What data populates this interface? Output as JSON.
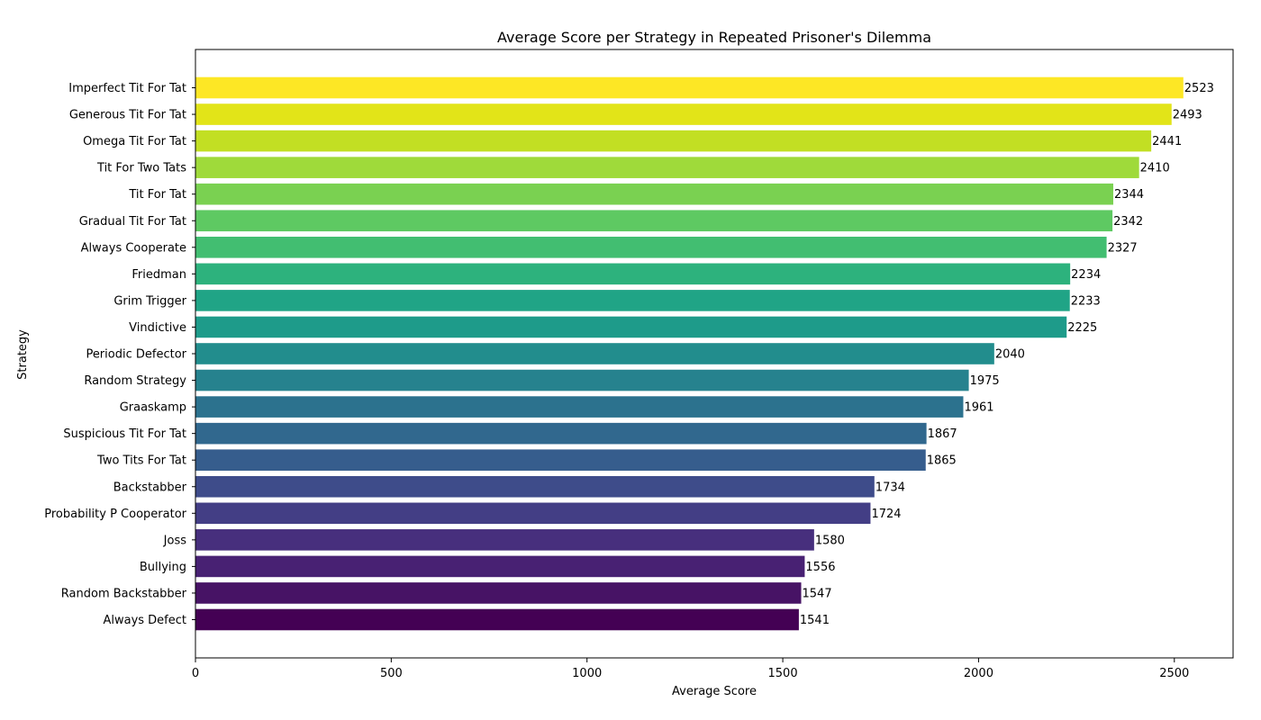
{
  "chart_data": {
    "type": "bar",
    "orientation": "horizontal",
    "title": "Average Score per Strategy in Repeated Prisoner's Dilemma",
    "xlabel": "Average Score",
    "ylabel": "Strategy",
    "xlim": [
      0,
      2650
    ],
    "x_ticks": [
      0,
      500,
      1000,
      1500,
      2000,
      2500
    ],
    "grid": false,
    "legend": "none",
    "colormap": "viridis (ascending by value)",
    "categories": [
      "Imperfect Tit For Tat",
      "Generous Tit For Tat",
      "Omega Tit For Tat",
      "Tit For Two Tats",
      "Tit For Tat",
      "Gradual Tit For Tat",
      "Always Cooperate",
      "Friedman",
      "Grim Trigger",
      "Vindictive",
      "Periodic Defector",
      "Random Strategy",
      "Graaskamp",
      "Suspicious Tit For Tat",
      "Two Tits For Tat",
      "Backstabber",
      "Probability P Cooperator",
      "Joss",
      "Bullying",
      "Random Backstabber",
      "Always Defect"
    ],
    "values": [
      2523,
      2493,
      2441,
      2410,
      2344,
      2342,
      2327,
      2234,
      2233,
      2225,
      2040,
      1975,
      1961,
      1867,
      1865,
      1734,
      1724,
      1580,
      1556,
      1547,
      1541
    ],
    "colors": [
      "#fde725",
      "#e2e418",
      "#c2df23",
      "#9fda3a",
      "#7ad151",
      "#5ec962",
      "#42be71",
      "#2db27d",
      "#20a486",
      "#1e9b8a",
      "#228d8d",
      "#26828e",
      "#2c728e",
      "#31688e",
      "#365d8d",
      "#3e4c8a",
      "#433e85",
      "#472f7d",
      "#482173",
      "#471365",
      "#440154"
    ]
  }
}
